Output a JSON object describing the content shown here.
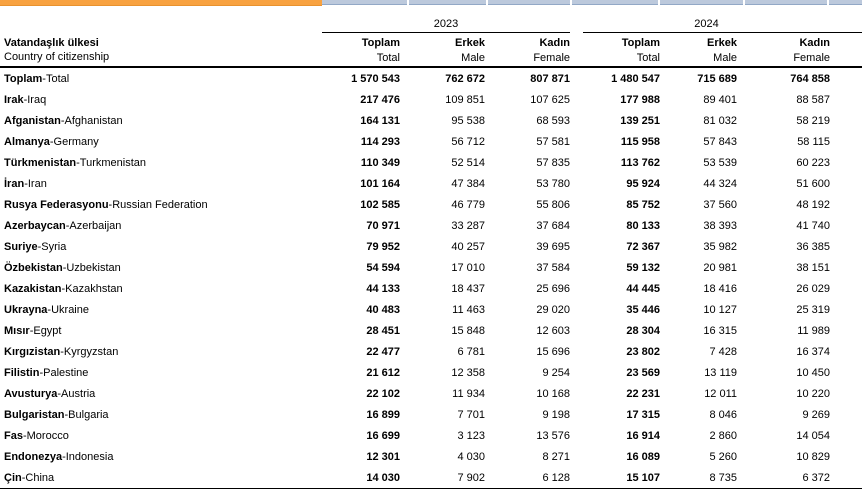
{
  "topbar": {
    "orange_color": "#F8A240",
    "orange_edge_color": "#E8922F",
    "blue_color": "#BCC9DC",
    "blue_edge_color": "#92A8C6"
  },
  "table": {
    "country_header": {
      "tr": "Vatandaşlık ülkesi",
      "en": "Country of citizenship"
    },
    "label_separator": "-",
    "year_groups": [
      {
        "year": "2023",
        "columns": [
          {
            "tr": "Toplam",
            "en": "Total"
          },
          {
            "tr": "Erkek",
            "en": "Male"
          },
          {
            "tr": "Kadın",
            "en": "Female"
          }
        ]
      },
      {
        "year": "2024",
        "columns": [
          {
            "tr": "Toplam",
            "en": "Total"
          },
          {
            "tr": "Erkek",
            "en": "Male"
          },
          {
            "tr": "Kadın",
            "en": "Female"
          }
        ]
      }
    ],
    "rows": [
      {
        "tr": "Toplam",
        "en": "Total",
        "emphasis": "all",
        "values": [
          "1 570 543",
          "762 672",
          "807 871",
          "1 480 547",
          "715 689",
          "764 858"
        ]
      },
      {
        "tr": "Irak",
        "en": "Iraq",
        "values": [
          "217 476",
          "109 851",
          "107 625",
          "177 988",
          "89 401",
          "88 587"
        ]
      },
      {
        "tr": "Afganistan",
        "en": "Afghanistan",
        "values": [
          "164 131",
          "95 538",
          "68 593",
          "139 251",
          "81 032",
          "58 219"
        ]
      },
      {
        "tr": "Almanya",
        "en": "Germany",
        "values": [
          "114 293",
          "56 712",
          "57 581",
          "115 958",
          "57 843",
          "58 115"
        ]
      },
      {
        "tr": "Türkmenistan",
        "en": "Turkmenistan",
        "values": [
          "110 349",
          "52 514",
          "57 835",
          "113 762",
          "53 539",
          "60 223"
        ]
      },
      {
        "tr": "İran",
        "en": "Iran",
        "values": [
          "101 164",
          "47 384",
          "53 780",
          "95 924",
          "44 324",
          "51 600"
        ]
      },
      {
        "tr": "Rusya Federasyonu",
        "en": "Russian Federation",
        "values": [
          "102 585",
          "46 779",
          "55 806",
          "85 752",
          "37 560",
          "48 192"
        ]
      },
      {
        "tr": "Azerbaycan",
        "en": "Azerbaijan",
        "values": [
          "70 971",
          "33 287",
          "37 684",
          "80 133",
          "38 393",
          "41 740"
        ]
      },
      {
        "tr": "Suriye",
        "en": "Syria",
        "values": [
          "79 952",
          "40 257",
          "39 695",
          "72 367",
          "35 982",
          "36 385"
        ]
      },
      {
        "tr": "Özbekistan",
        "en": "Uzbekistan",
        "values": [
          "54 594",
          "17 010",
          "37 584",
          "59 132",
          "20 981",
          "38 151"
        ]
      },
      {
        "tr": "Kazakistan",
        "en": "Kazakhstan",
        "values": [
          "44 133",
          "18 437",
          "25 696",
          "44 445",
          "18 416",
          "26 029"
        ]
      },
      {
        "tr": "Ukrayna",
        "en": "Ukraine",
        "values": [
          "40 483",
          "11 463",
          "29 020",
          "35 446",
          "10 127",
          "25 319"
        ]
      },
      {
        "tr": "Mısır",
        "en": "Egypt",
        "values": [
          "28 451",
          "15 848",
          "12 603",
          "28 304",
          "16 315",
          "11 989"
        ]
      },
      {
        "tr": "Kırgızistan",
        "en": "Kyrgyzstan",
        "values": [
          "22 477",
          "6 781",
          "15 696",
          "23 802",
          "7 428",
          "16 374"
        ]
      },
      {
        "tr": "Filistin",
        "en": "Palestine",
        "values": [
          "21 612",
          "12 358",
          "9 254",
          "23 569",
          "13 119",
          "10 450"
        ]
      },
      {
        "tr": "Avusturya",
        "en": "Austria",
        "values": [
          "22 102",
          "11 934",
          "10 168",
          "22 231",
          "12 011",
          "10 220"
        ]
      },
      {
        "tr": "Bulgaristan",
        "en": "Bulgaria",
        "values": [
          "16 899",
          "7 701",
          "9 198",
          "17 315",
          "8 046",
          "9 269"
        ]
      },
      {
        "tr": "Fas",
        "en": "Morocco",
        "values": [
          "16 699",
          "3 123",
          "13 576",
          "16 914",
          "2 860",
          "14 054"
        ]
      },
      {
        "tr": "Endonezya",
        "en": "Indonesia",
        "values": [
          "12 301",
          "4 030",
          "8 271",
          "16 089",
          "5 260",
          "10 829"
        ]
      },
      {
        "tr": "Çin",
        "en": "China",
        "values": [
          "14 030",
          "7 902",
          "6 128",
          "15 107",
          "8 735",
          "6 372"
        ]
      }
    ]
  }
}
